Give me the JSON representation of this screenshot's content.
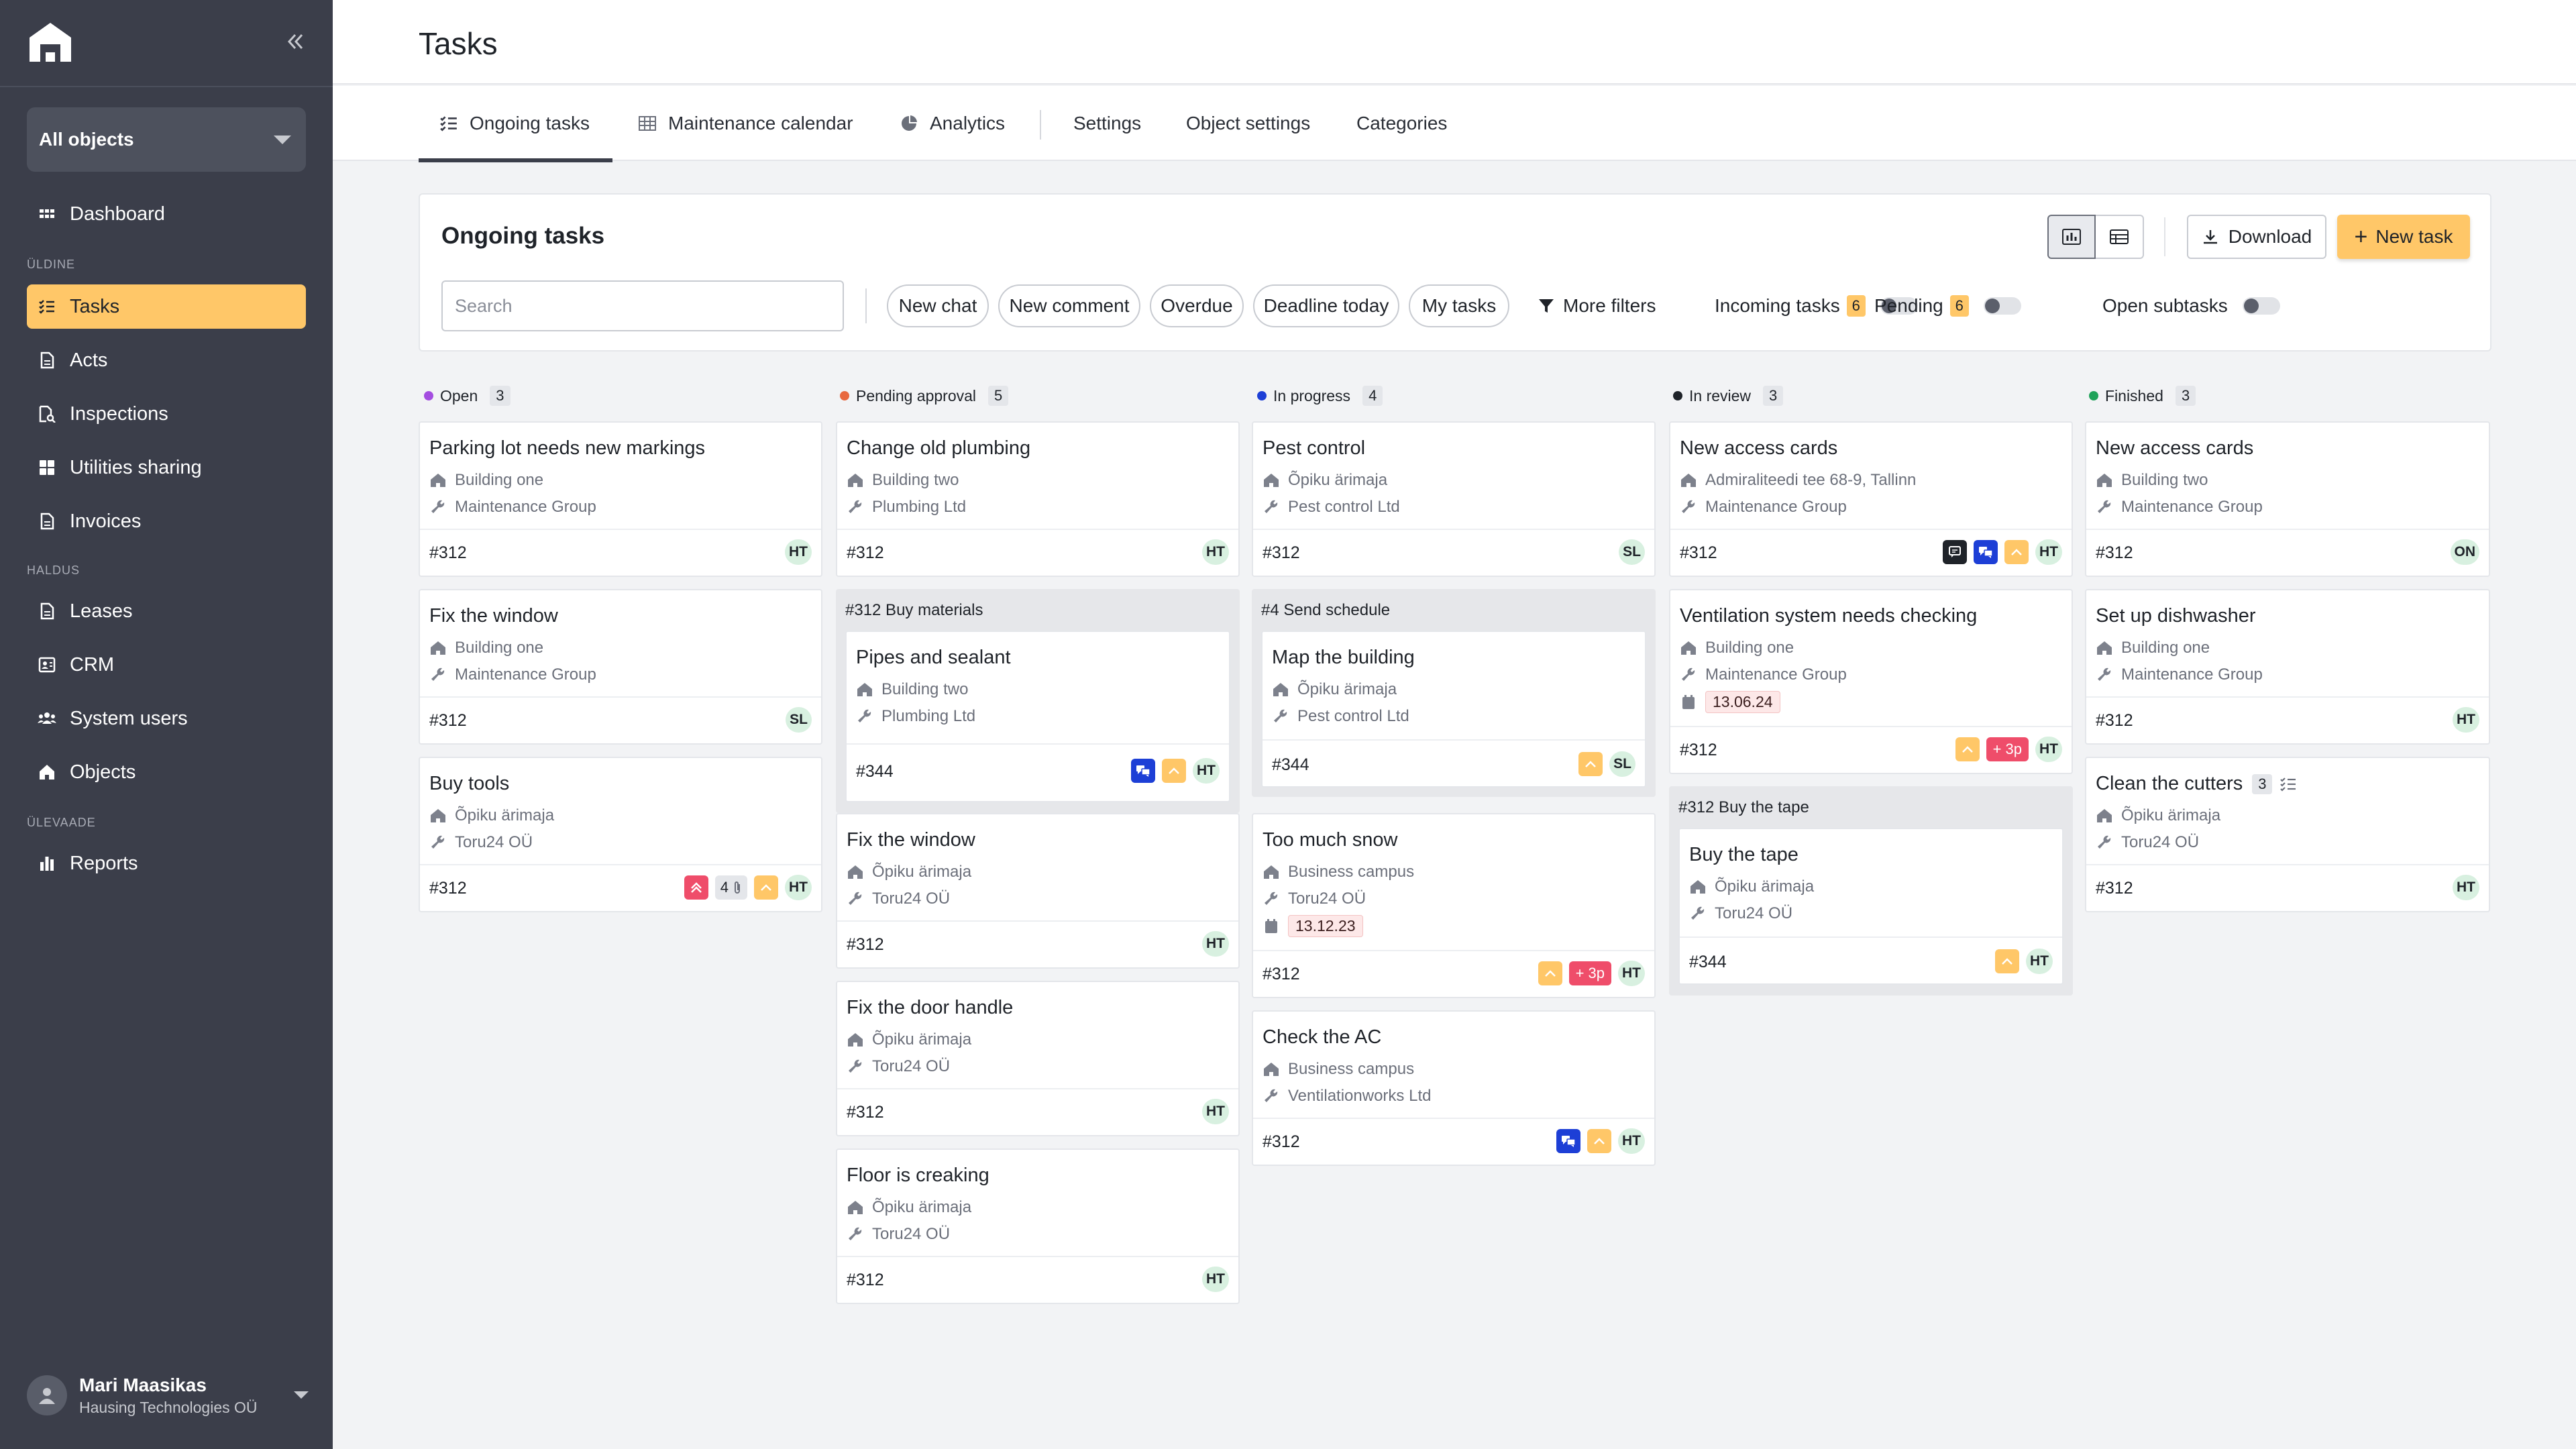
{
  "sidebar": {
    "object_select": "All objects",
    "sections": {
      "general": "ÜLDINE",
      "management": "HALDUS",
      "overview": "ÜLEVAADE"
    },
    "items": [
      {
        "label": "Dashboard",
        "icon": "dashboard-icon"
      },
      {
        "label": "Tasks",
        "icon": "tasks-icon"
      },
      {
        "label": "Acts",
        "icon": "document-icon"
      },
      {
        "label": "Inspections",
        "icon": "inspection-icon"
      },
      {
        "label": "Utilities sharing",
        "icon": "grid-icon"
      },
      {
        "label": "Invoices",
        "icon": "document-icon"
      },
      {
        "label": "Leases",
        "icon": "document-icon"
      },
      {
        "label": "CRM",
        "icon": "crm-icon"
      },
      {
        "label": "System users",
        "icon": "users-icon"
      },
      {
        "label": "Objects",
        "icon": "home-icon"
      },
      {
        "label": "Reports",
        "icon": "bar-chart-icon"
      }
    ],
    "user": {
      "name": "Mari Maasikas",
      "company": "Hausing Technologies OÜ"
    }
  },
  "header": {
    "title": "Tasks"
  },
  "tabs": [
    {
      "label": "Ongoing tasks"
    },
    {
      "label": "Maintenance calendar"
    },
    {
      "label": "Analytics"
    },
    {
      "label": "Settings"
    },
    {
      "label": "Object settings"
    },
    {
      "label": "Categories"
    }
  ],
  "panel": {
    "title": "Ongoing tasks",
    "download_label": "Download",
    "new_task_label": "New task",
    "search_placeholder": "Search",
    "chips": [
      "New chat",
      "New comment",
      "Overdue",
      "Deadline today",
      "My tasks"
    ],
    "more_filters": "More filters",
    "toggles": [
      {
        "label": "Incoming tasks",
        "count": "6"
      },
      {
        "label": "Pending",
        "count": "6"
      },
      {
        "label": "Open subtasks"
      }
    ]
  },
  "columns": [
    {
      "name": "Open",
      "count": "3",
      "color": "#a44de0"
    },
    {
      "name": "Pending approval",
      "count": "5",
      "color": "#e8683f"
    },
    {
      "name": "In progress",
      "count": "4",
      "color": "#1d3fd6"
    },
    {
      "name": "In review",
      "count": "3",
      "color": "#1f2329"
    },
    {
      "name": "Finished",
      "count": "3",
      "color": "#20a35a"
    }
  ],
  "cards": {
    "open": [
      {
        "title": "Parking lot needs new markings",
        "object": "Building one",
        "provider": "Maintenance Group",
        "id": "#312",
        "assignee": "HT"
      },
      {
        "title": "Fix the window",
        "object": "Building one",
        "provider": "Maintenance Group",
        "id": "#312",
        "assignee": "SL"
      },
      {
        "title": "Buy tools",
        "object": "Õpiku ärimaja",
        "provider": "Toru24 OÜ",
        "id": "#312",
        "attachments": "4",
        "assignee": "HT"
      }
    ],
    "pending": [
      {
        "title": "Change old plumbing",
        "object": "Building two",
        "provider": "Plumbing Ltd",
        "id": "#312",
        "assignee": "HT"
      },
      {
        "group_title": "#312  Buy materials",
        "title": "Pipes and sealant",
        "object": "Building two",
        "provider": "Plumbing Ltd",
        "id": "#344",
        "assignee": "HT"
      },
      {
        "title": "Fix the window",
        "object": "Õpiku ärimaja",
        "provider": "Toru24 OÜ",
        "id": "#312",
        "assignee": "HT"
      },
      {
        "title": "Fix the door handle",
        "object": "Õpiku ärimaja",
        "provider": "Toru24 OÜ",
        "id": "#312",
        "assignee": "HT"
      },
      {
        "title": "Floor is creaking",
        "object": "Õpiku ärimaja",
        "provider": "Toru24 OÜ",
        "id": "#312",
        "assignee": "HT"
      }
    ],
    "progress": [
      {
        "title": "Pest control",
        "object": "Õpiku ärimaja",
        "provider": "Pest control Ltd",
        "id": "#312",
        "assignee": "SL"
      },
      {
        "group_title": "#4  Send schedule",
        "title": "Map the building",
        "object": "Õpiku ärimaja",
        "provider": "Pest control Ltd",
        "id": "#344",
        "assignee": "SL"
      },
      {
        "title": "Too much snow",
        "object": "Business campus",
        "provider": "Toru24 OÜ",
        "date": "13.12.23",
        "id": "#312",
        "extra": "+ 3p",
        "assignee": "HT"
      },
      {
        "title": "Check the AC",
        "object": "Business campus",
        "provider": "Ventilationworks Ltd",
        "id": "#312",
        "assignee": "HT"
      }
    ],
    "review": [
      {
        "title": "New access cards",
        "object": "Admiraliteedi tee 68-9, Tallinn",
        "provider": "Maintenance Group",
        "id": "#312",
        "assignee": "HT"
      },
      {
        "title": "Ventilation system needs checking",
        "object": "Building one",
        "provider": "Maintenance Group",
        "date": "13.06.24",
        "id": "#312",
        "extra": "+ 3p",
        "assignee": "HT"
      },
      {
        "group_title": "#312  Buy the tape",
        "title": "Buy the tape",
        "object": "Õpiku ärimaja",
        "provider": "Toru24 OÜ",
        "id": "#344",
        "assignee": "HT"
      }
    ],
    "finished": [
      {
        "title": "New access cards",
        "object": "Building two",
        "provider": "Maintenance Group",
        "id": "#312",
        "assignee": "ON"
      },
      {
        "title": "Set up dishwasher",
        "object": "Building one",
        "provider": "Maintenance Group",
        "id": "#312",
        "assignee": "HT"
      },
      {
        "title": "Clean the cutters",
        "subtasks": "3",
        "object": "Õpiku ärimaja",
        "provider": "Toru24 OÜ",
        "id": "#312",
        "assignee": "HT"
      }
    ]
  }
}
